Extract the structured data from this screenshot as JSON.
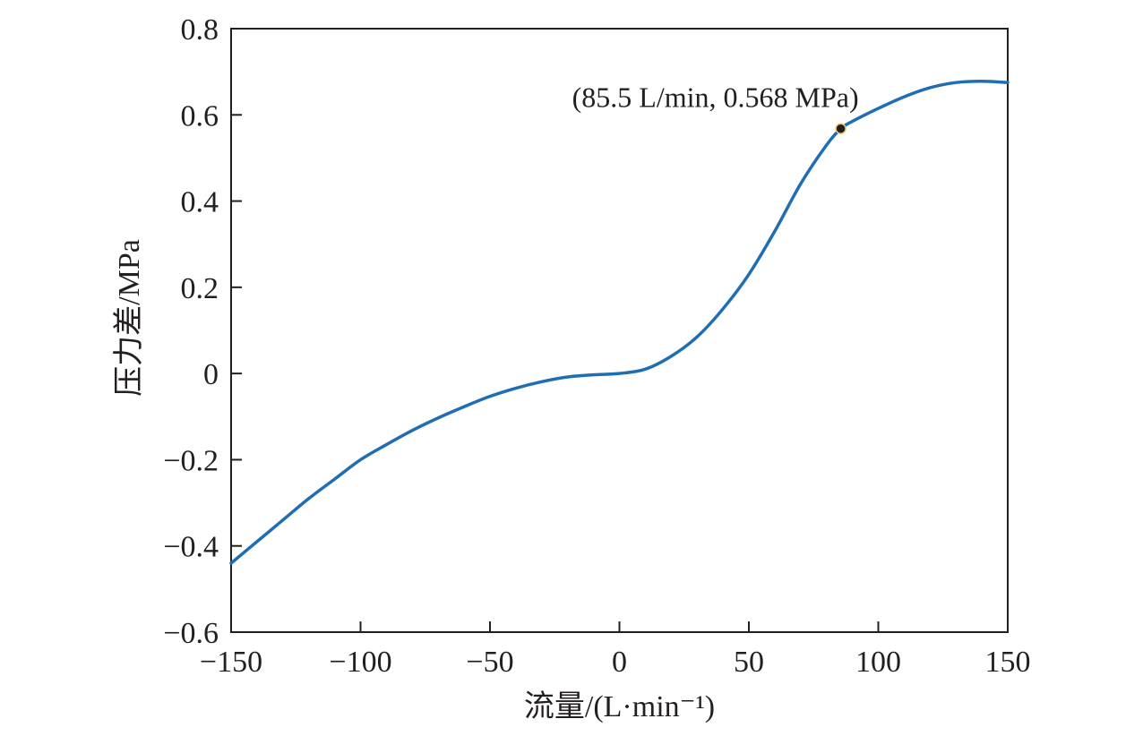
{
  "chart_data": {
    "type": "line",
    "title": "",
    "xlabel": "流量/(L·min⁻¹)",
    "ylabel": "压力差/MPa",
    "xlim": [
      -150,
      150
    ],
    "ylim": [
      -0.6,
      0.8
    ],
    "xticks": [
      -150,
      -100,
      -50,
      0,
      50,
      100,
      150
    ],
    "xtick_labels": [
      "−150",
      "−100",
      "−50",
      "0",
      "50",
      "100",
      "150"
    ],
    "yticks": [
      -0.6,
      -0.4,
      -0.2,
      0,
      0.2,
      0.4,
      0.6,
      0.8
    ],
    "ytick_labels": [
      "−0.6",
      "−0.4",
      "−0.2",
      "0",
      "0.2",
      "0.4",
      "0.6",
      "0.8"
    ],
    "grid": false,
    "line_color": "#1f6eb4",
    "series": [
      {
        "x": [
          -150,
          -140,
          -130,
          -120,
          -110,
          -100,
          -90,
          -80,
          -70,
          -60,
          -50,
          -40,
          -30,
          -20,
          -10,
          0,
          10,
          20,
          30,
          40,
          50,
          60,
          70,
          80,
          85.5,
          90,
          100,
          110,
          120,
          130,
          140,
          150
        ],
        "values": [
          -0.44,
          -0.39,
          -0.34,
          -0.29,
          -0.245,
          -0.2,
          -0.165,
          -0.132,
          -0.103,
          -0.077,
          -0.053,
          -0.034,
          -0.019,
          -0.008,
          -0.003,
          0,
          0.01,
          0.04,
          0.085,
          0.15,
          0.23,
          0.33,
          0.44,
          0.53,
          0.568,
          0.585,
          0.615,
          0.642,
          0.663,
          0.675,
          0.678,
          0.675
        ]
      }
    ],
    "annotations": [
      {
        "x": 85.5,
        "y": 0.568,
        "text": "(85.5 L/min, 0.568 MPa)"
      }
    ]
  }
}
